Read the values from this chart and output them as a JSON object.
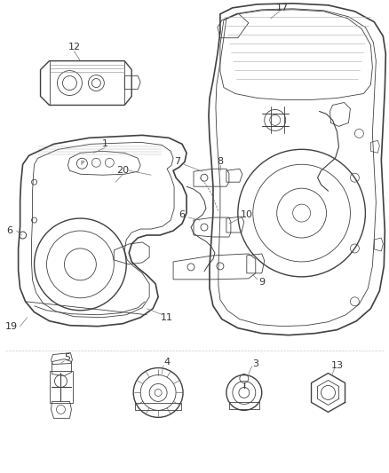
{
  "bg_color": "#ffffff",
  "line_color": "#404040",
  "label_color": "#333333",
  "figsize": [
    4.38,
    5.33
  ],
  "dpi": 100
}
